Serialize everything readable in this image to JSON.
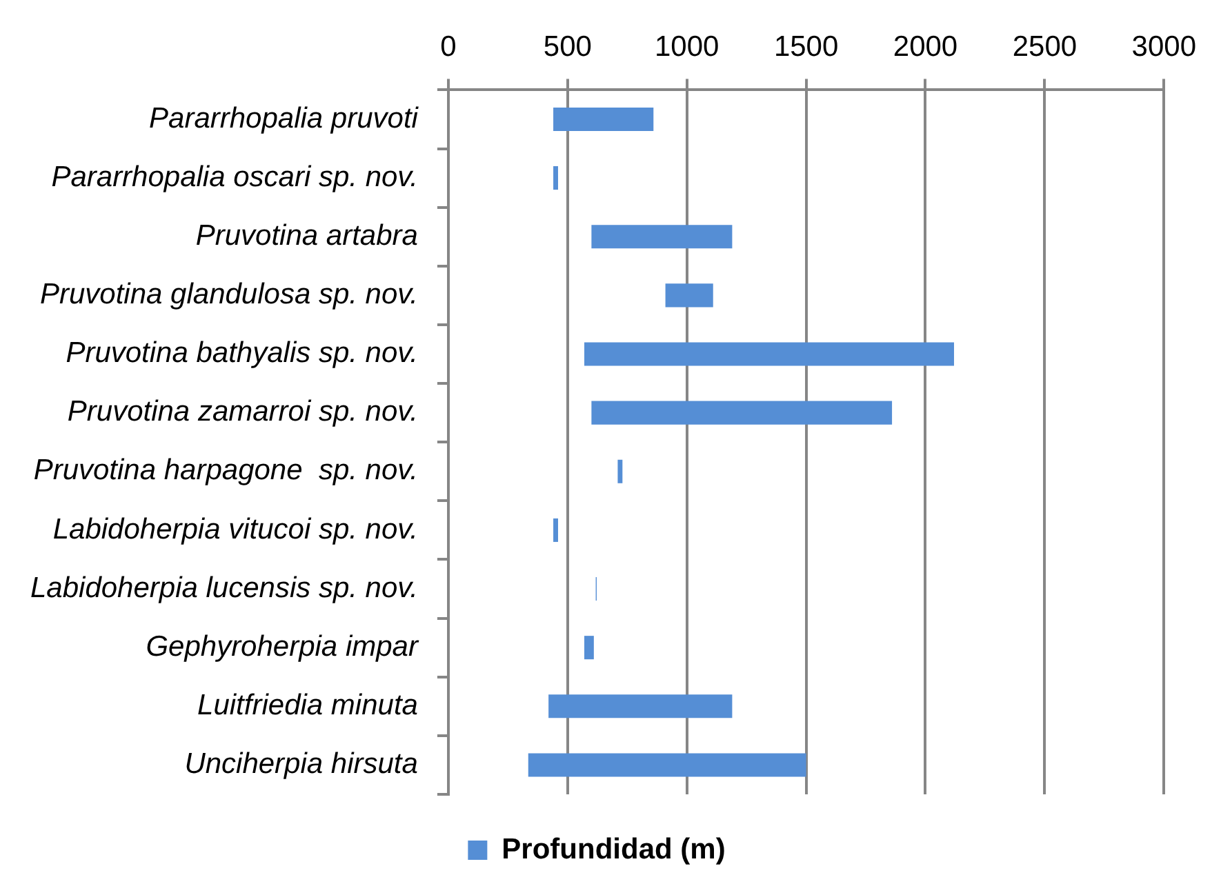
{
  "chart_data": {
    "type": "bar",
    "orientation": "horizontal",
    "categories": [
      "Pararrhopalia pruvoti",
      "Pararrhopalia oscari sp. nov.",
      "Pruvotina artabra",
      "Pruvotina glandulosa sp. nov.",
      "Pruvotina bathyalis sp. nov.",
      "Pruvotina zamarroi sp. nov.",
      "Pruvotina harpagone  sp. nov.",
      "Labidoherpia vitucoi sp. nov.",
      "Labidoherpia lucensis sp. nov.",
      "Gephyroherpia impar",
      "Luitfriedia minuta",
      "Unciherpia hirsuta"
    ],
    "series": [
      {
        "name": "Profundidad (m)",
        "color": "#558ed5",
        "base": [
          440,
          440,
          600,
          910,
          570,
          600,
          710,
          440,
          618,
          570,
          420,
          335
        ],
        "values": [
          420,
          20,
          590,
          200,
          1550,
          1260,
          20,
          20,
          4,
          40,
          770,
          1165
        ]
      }
    ],
    "xlim": [
      0,
      3000
    ],
    "xticks": [
      0,
      500,
      1000,
      1500,
      2000,
      2500,
      3000
    ],
    "grid": "x",
    "legend": "bottom"
  }
}
